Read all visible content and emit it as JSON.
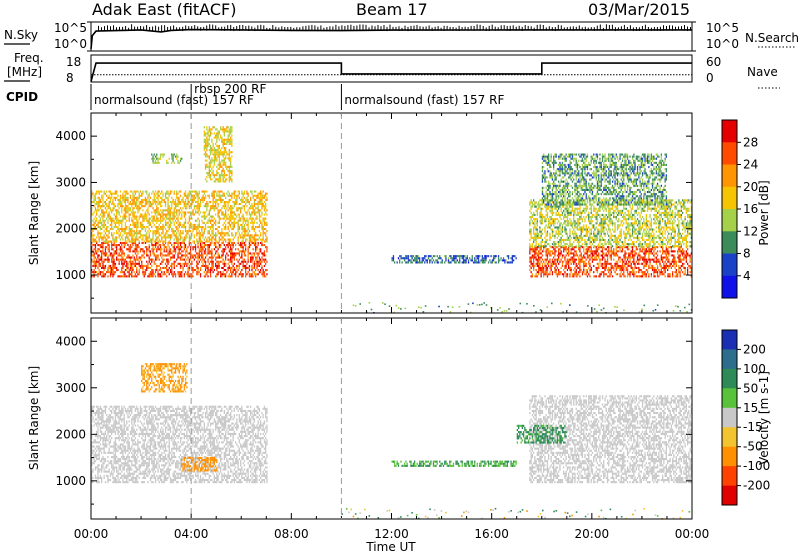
{
  "header": {
    "radar": "Adak East (fitACF)",
    "beam": "Beam 17",
    "date": "03/Mar/2015"
  },
  "noise_panel": {
    "left_label": "N.Sky",
    "right_label": "N.Search",
    "left_ticks": [
      "10^5",
      "10^0"
    ],
    "right_ticks": [
      "10^5",
      "10^0"
    ]
  },
  "freq_panel": {
    "left_label_1": "Freq.",
    "left_label_2": "[MHz]",
    "right_label": "Nave",
    "left_ticks": [
      "18",
      "8"
    ],
    "right_ticks": [
      "60",
      "0"
    ]
  },
  "cpid": {
    "label": "CPID",
    "segments": [
      {
        "start": 0,
        "end": 4,
        "text": "normalsound (fast) 157 RF"
      },
      {
        "start": 4,
        "end": 10,
        "text": "rbsp 200 RF"
      },
      {
        "start": 10,
        "end": 24,
        "text": "normalsound (fast) 157 RF"
      }
    ]
  },
  "x_axis": {
    "label": "Time UT",
    "ticks": [
      "00:00",
      "04:00",
      "08:00",
      "12:00",
      "16:00",
      "20:00",
      "00:00"
    ]
  },
  "power_panel": {
    "ylabel": "Slant Range [km]",
    "yticks": [
      "1000",
      "2000",
      "3000",
      "4000"
    ],
    "colorbar_label": "Power [dB]",
    "colorbar_ticks": [
      "28",
      "24",
      "20",
      "16",
      "12",
      "8",
      "4"
    ],
    "colorbar_colors": [
      "#e40000",
      "#ff4a00",
      "#ff9500",
      "#f6c400",
      "#a4d04a",
      "#3c8c5a",
      "#1a42c8",
      "#1010e8"
    ]
  },
  "velocity_panel": {
    "ylabel": "Slant Range [km]",
    "yticks": [
      "1000",
      "2000",
      "3000",
      "4000"
    ],
    "colorbar_label": "Velocity [m s-1]",
    "colorbar_ticks": [
      "200",
      "100",
      "50",
      "15",
      "-15",
      "-50",
      "-100",
      "-200"
    ],
    "colorbar_colors": [
      "#1a2fb4",
      "#2c6e8c",
      "#2e8b57",
      "#58c23a",
      "#c8c8c8",
      "#f2c430",
      "#ff9000",
      "#ff4200",
      "#e00000"
    ]
  },
  "chart_data": [
    {
      "type": "line",
      "title": "Adak East (fitACF) Beam 17 03/Mar/2015",
      "xlabel": "Time UT",
      "ylabel": "N.Sky",
      "y2label": "N.Search",
      "xlim": [
        0,
        24
      ],
      "series": [
        {
          "name": "N.Sky",
          "x": [
            0,
            0.05,
            0.2,
            1.0,
            2.0,
            2.8,
            3.2,
            4.0,
            6.0,
            8.0,
            10.0,
            12.0,
            16.0,
            20.0,
            24.0
          ],
          "y": [
            1,
            200,
            1200,
            1500,
            2000,
            900,
            1600,
            2200,
            2000,
            1600,
            1500,
            1800,
            1900,
            2000,
            2000
          ]
        }
      ]
    },
    {
      "type": "line",
      "xlabel": "Time UT",
      "ylabel": "Freq. [MHz]",
      "y2label": "Nave",
      "xlim": [
        0,
        24
      ],
      "ylim": [
        8,
        18
      ],
      "series": [
        {
          "name": "Freq.",
          "x": [
            0,
            0.2,
            10.0,
            10.0,
            18.0,
            18.0,
            24.0
          ],
          "y": [
            8.2,
            15.0,
            15.0,
            11.0,
            11.0,
            15.0,
            15.0
          ]
        },
        {
          "name": "Nave",
          "x": [
            0,
            4,
            10,
            18,
            24
          ],
          "y": [
            16,
            16,
            16,
            16,
            16
          ]
        }
      ]
    },
    {
      "type": "heatmap",
      "xlabel": "Time UT",
      "ylabel": "Slant Range [km]",
      "zlabel": "Power [dB]",
      "xlim": [
        0,
        24
      ],
      "ylim": [
        180,
        4500
      ],
      "zlim": [
        0,
        30
      ],
      "regions": [
        {
          "t": [
            0,
            7.0
          ],
          "r_lo": 950,
          "r_hi": 1700,
          "value": 26
        },
        {
          "t": [
            0,
            7.0
          ],
          "r_lo": 1700,
          "r_hi": 2800,
          "value": 18
        },
        {
          "t": [
            2.4,
            3.6
          ],
          "r_lo": 3400,
          "r_hi": 3600,
          "value": 12
        },
        {
          "t": [
            4.5,
            5.6
          ],
          "r_lo": 3000,
          "r_hi": 4200,
          "value": 16
        },
        {
          "t": [
            12.0,
            17.0
          ],
          "r_lo": 1250,
          "r_hi": 1400,
          "value": 6
        },
        {
          "t": [
            17.5,
            24.0
          ],
          "r_lo": 950,
          "r_hi": 1600,
          "value": 26
        },
        {
          "t": [
            17.5,
            24.0
          ],
          "r_lo": 1600,
          "r_hi": 2600,
          "value": 14
        },
        {
          "t": [
            18.0,
            23.0
          ],
          "r_lo": 2500,
          "r_hi": 3600,
          "value": 10
        }
      ]
    },
    {
      "type": "heatmap",
      "xlabel": "Time UT",
      "ylabel": "Slant Range [km]",
      "zlabel": "Velocity [m s-1]",
      "xlim": [
        0,
        24
      ],
      "ylim": [
        180,
        4500
      ],
      "zlim": [
        -200,
        200
      ],
      "regions": [
        {
          "t": [
            0,
            7.0
          ],
          "r_lo": 950,
          "r_hi": 2600,
          "value": 0
        },
        {
          "t": [
            3.6,
            5.0
          ],
          "r_lo": 1200,
          "r_hi": 1500,
          "value": -60
        },
        {
          "t": [
            2.0,
            3.8
          ],
          "r_lo": 2900,
          "r_hi": 3500,
          "value": -40
        },
        {
          "t": [
            17.5,
            24.0
          ],
          "r_lo": 950,
          "r_hi": 2800,
          "value": 0
        },
        {
          "t": [
            17.0,
            19.0
          ],
          "r_lo": 1800,
          "r_hi": 2200,
          "value": 40
        },
        {
          "t": [
            12.0,
            17.0
          ],
          "r_lo": 1300,
          "r_hi": 1400,
          "value": 30
        }
      ]
    }
  ]
}
